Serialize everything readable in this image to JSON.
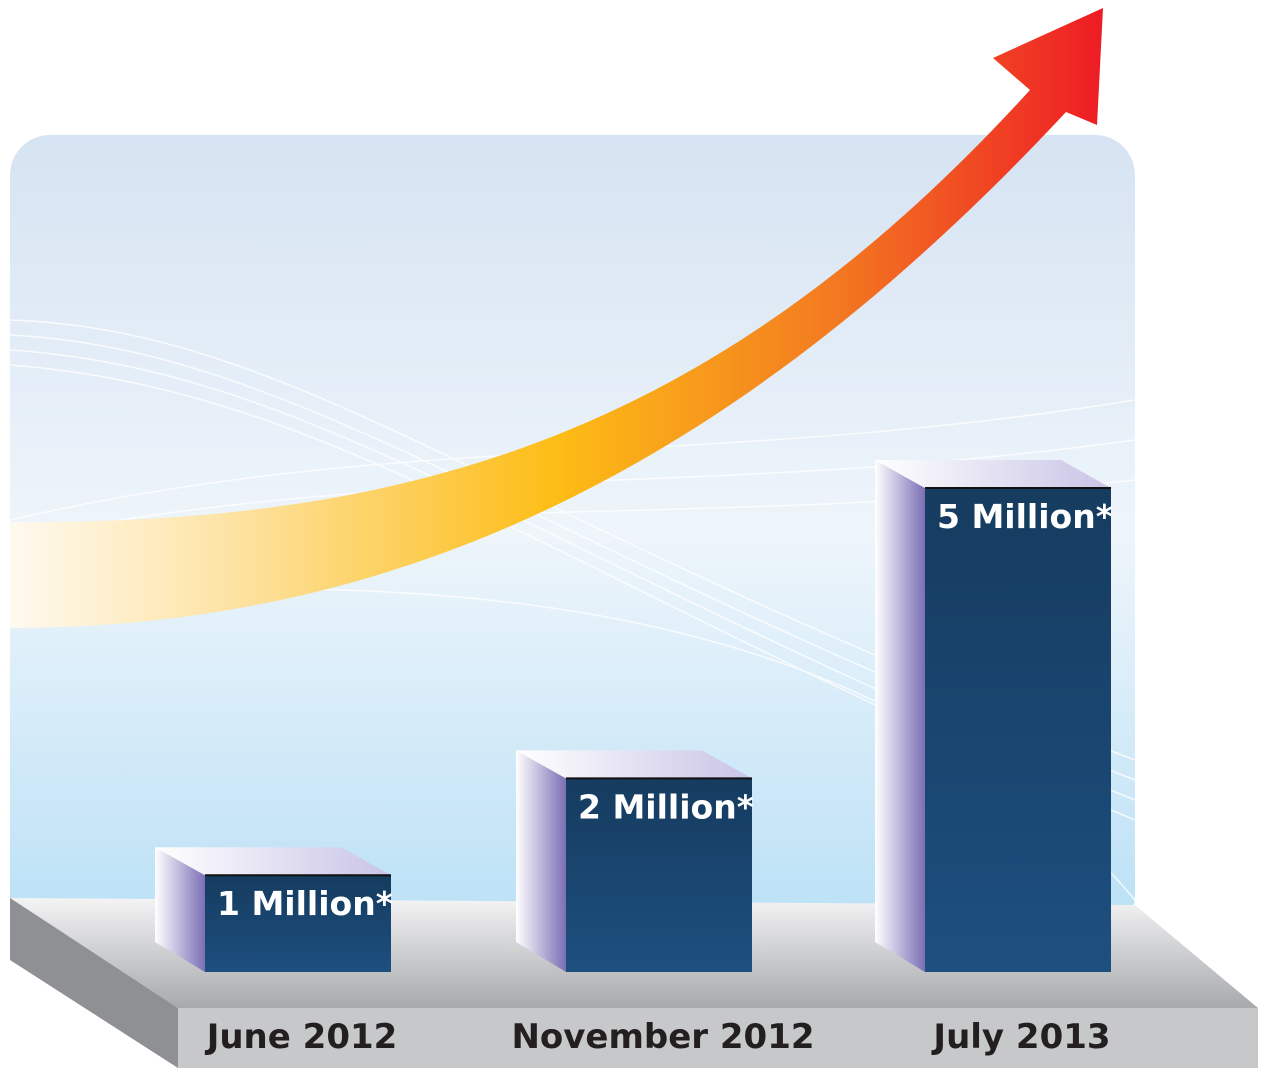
{
  "chart_data": {
    "type": "bar",
    "categories": [
      "June 2012",
      "November 2012",
      "July 2013"
    ],
    "values": [
      1,
      2,
      5
    ],
    "value_labels": [
      "1 Million*",
      "2 Million*",
      "5 Million*"
    ],
    "color": "#1d4f7f"
  }
}
